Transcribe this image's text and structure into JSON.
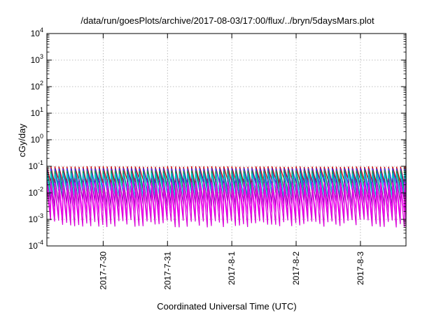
{
  "chart_data": {
    "type": "line",
    "title": "/data/run/goesPlots/archive/2017-08-03/17:00/flux/../bryn/5daysMars.plot",
    "xlabel": "Coordinated Universal Time (UTC)",
    "ylabel": "cGy/day",
    "yscale": "log",
    "ylim": [
      0.0001,
      10000
    ],
    "y_ticks": [
      {
        "base": "10",
        "exp": "-4",
        "value": 0.0001
      },
      {
        "base": "10",
        "exp": "-3",
        "value": 0.001
      },
      {
        "base": "10",
        "exp": "-2",
        "value": 0.01
      },
      {
        "base": "10",
        "exp": "-1",
        "value": 0.1
      },
      {
        "base": "10",
        "exp": "0",
        "value": 1
      },
      {
        "base": "10",
        "exp": "1",
        "value": 10
      },
      {
        "base": "10",
        "exp": "2",
        "value": 100
      },
      {
        "base": "10",
        "exp": "3",
        "value": 1000
      },
      {
        "base": "10",
        "exp": "4",
        "value": 10000
      }
    ],
    "xlim": [
      "2017-07-29T03:00",
      "2017-08-03T17:00"
    ],
    "x_ticks": [
      {
        "label": "2017-7-30",
        "value": "2017-07-30T00:00"
      },
      {
        "label": "2017-7-31",
        "value": "2017-07-31T00:00"
      },
      {
        "label": "2017-8-1",
        "value": "2017-08-01T00:00"
      },
      {
        "label": "2017-8-2",
        "value": "2017-08-02T00:00"
      },
      {
        "label": "2017-8-3",
        "value": "2017-08-03T00:00"
      }
    ],
    "grid": true,
    "legend": "none",
    "period_hours": 1.5,
    "series": [
      {
        "color": "#cc0000",
        "peak": 0.1,
        "trough": 0.025
      },
      {
        "color": "#2040ff",
        "peak": 0.085,
        "trough": 0.018
      },
      {
        "color": "#1a9a40",
        "peak": 0.07,
        "trough": 0.013
      },
      {
        "color": "#00c8d8",
        "peak": 0.055,
        "trough": 0.009
      },
      {
        "color": "#7a1fa0",
        "peak": 0.035,
        "trough": 0.004
      },
      {
        "color": "#ff00ff",
        "peak": 0.025,
        "trough": 0.0015
      },
      {
        "color": "#d800d8",
        "peak": 0.015,
        "trough": 0.0007
      }
    ]
  }
}
